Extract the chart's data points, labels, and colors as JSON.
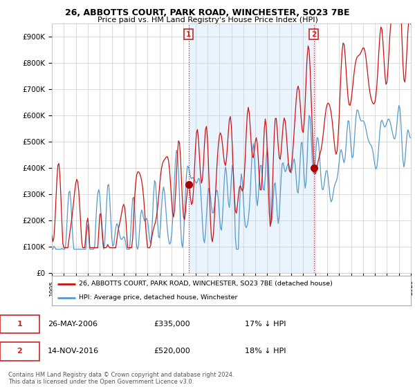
{
  "title": "26, ABBOTTS COURT, PARK ROAD, WINCHESTER, SO23 7BE",
  "subtitle": "Price paid vs. HM Land Registry's House Price Index (HPI)",
  "legend_line1": "26, ABBOTTS COURT, PARK ROAD, WINCHESTER, SO23 7BE (detached house)",
  "legend_line2": "HPI: Average price, detached house, Winchester",
  "sale1_label": "1",
  "sale1_date": "26-MAY-2006",
  "sale1_price": "£335,000",
  "sale1_hpi": "17% ↓ HPI",
  "sale2_label": "2",
  "sale2_date": "14-NOV-2016",
  "sale2_price": "£520,000",
  "sale2_hpi": "18% ↓ HPI",
  "footer": "Contains HM Land Registry data © Crown copyright and database right 2024.\nThis data is licensed under the Open Government Licence v3.0.",
  "hpi_color": "#5599cc",
  "hpi_fill_color": "#ddeeff",
  "price_color": "#cc1111",
  "marker_color": "#aa0000",
  "vline_color": "#cc2222",
  "background_color": "#ffffff",
  "grid_color": "#cccccc",
  "ylim": [
    0,
    950000
  ],
  "yticks": [
    0,
    100000,
    200000,
    300000,
    400000,
    500000,
    600000,
    700000,
    800000,
    900000
  ],
  "sale1_year": 2006.42,
  "sale1_price_val": 335000,
  "sale2_year": 2016.88,
  "sale2_price_val": 520000,
  "xmin": 1995,
  "xmax": 2025
}
